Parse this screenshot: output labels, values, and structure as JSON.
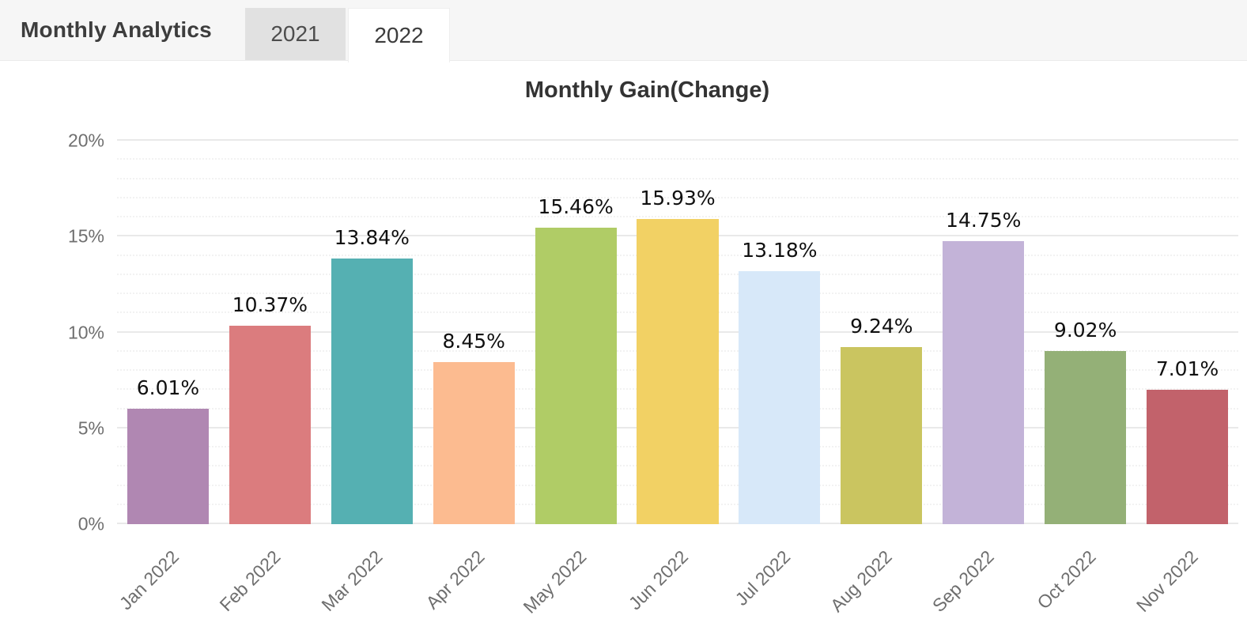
{
  "header": {
    "title": "Monthly Analytics",
    "tabs": [
      {
        "label": "2021",
        "active": false
      },
      {
        "label": "2022",
        "active": true
      }
    ]
  },
  "chart_data": {
    "type": "bar",
    "title": "Monthly Gain(Change)",
    "categories": [
      "Jan 2022",
      "Feb 2022",
      "Mar 2022",
      "Apr 2022",
      "May 2022",
      "Jun 2022",
      "Jul 2022",
      "Aug 2022",
      "Sep 2022",
      "Oct 2022",
      "Nov 2022"
    ],
    "values": [
      6.01,
      10.37,
      13.84,
      8.45,
      15.46,
      15.93,
      13.18,
      9.24,
      14.75,
      9.02,
      7.01
    ],
    "value_labels": [
      "6.01%",
      "10.37%",
      "13.84%",
      "8.45%",
      "15.46%",
      "15.93%",
      "13.18%",
      "9.24%",
      "14.75%",
      "9.02%",
      "7.01%"
    ],
    "bar_colors": [
      "#b087b2",
      "#db7c7e",
      "#55b0b2",
      "#fcbb90",
      "#b0cc66",
      "#f2d164",
      "#d7e8f9",
      "#cac560",
      "#c3b3d8",
      "#94b077",
      "#c2626b"
    ],
    "xlabel": "",
    "ylabel": "",
    "ylim": [
      0,
      20
    ],
    "y_ticks": [
      "0%",
      "5%",
      "10%",
      "15%",
      "20%"
    ],
    "y_tick_values": [
      0,
      5,
      10,
      15,
      20
    ],
    "minor_grid_step": 1,
    "grid": "on",
    "legend": "none"
  },
  "colors": {
    "header_bg": "#f6f6f6",
    "inactive_tab_bg": "#e1e1e1",
    "active_tab_bg": "#ffffff",
    "grid_major": "#e9e9e9",
    "grid_minor": "#f2f2f2",
    "axis_text": "#6f6f6f",
    "value_text": "#101010",
    "title_text": "#333333"
  }
}
